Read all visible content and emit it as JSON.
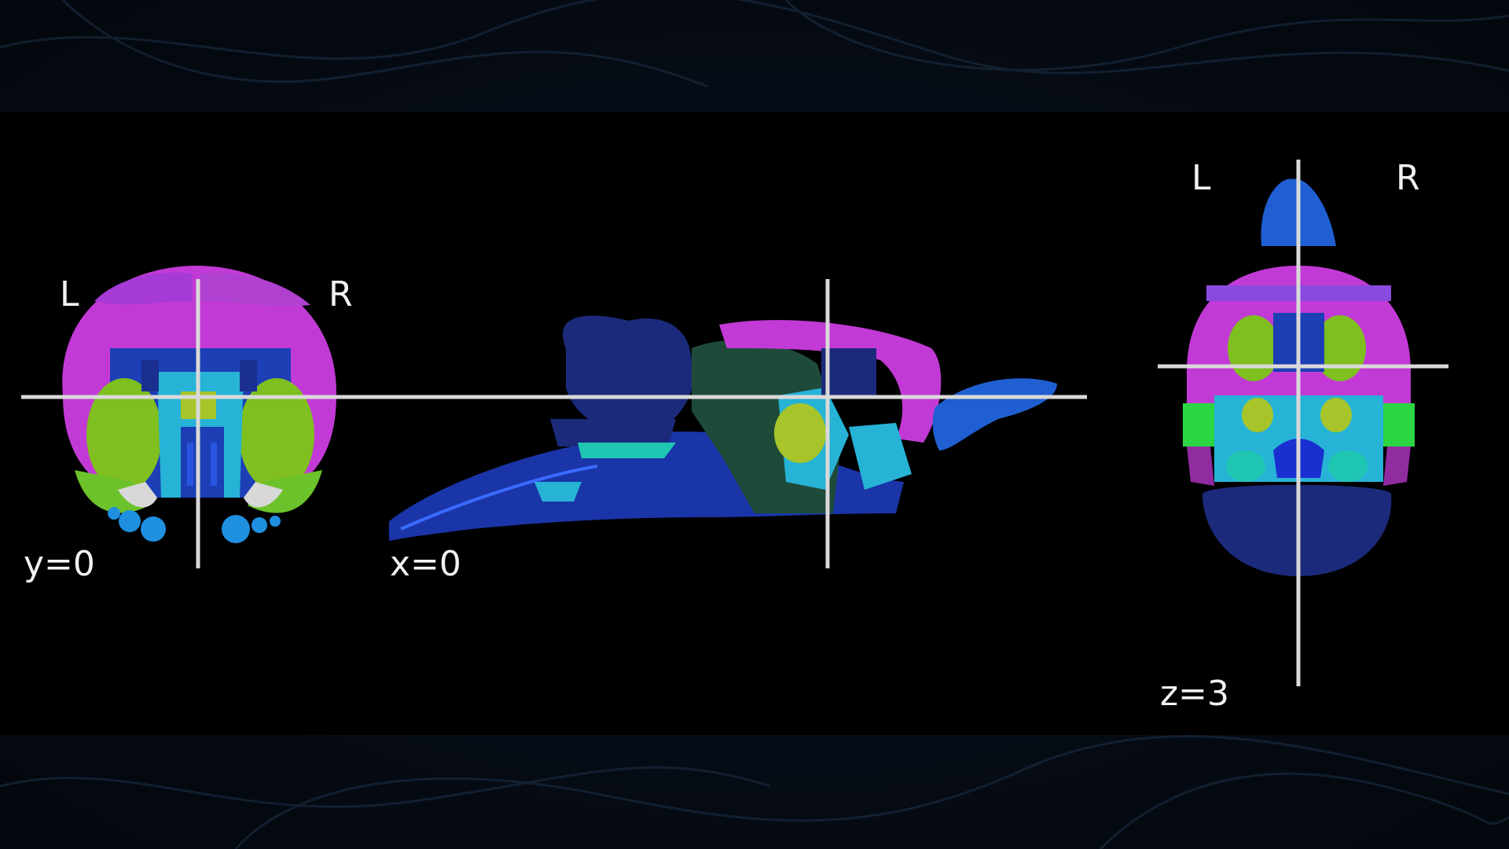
{
  "views": {
    "coronal": {
      "left_label": "L",
      "right_label": "R",
      "coord_label": "y=0"
    },
    "sagittal": {
      "coord_label": "x=0"
    },
    "axial": {
      "left_label": "L",
      "right_label": "R",
      "coord_label": "z=3"
    }
  },
  "colors": {
    "background": "#000000",
    "crosshair": "#d9d9d9",
    "label_text": "#f2f2f2",
    "cortex_magenta": "#c23ad6",
    "striatum_green": "#7fbf1f",
    "ventricle_blue": "#1c3fb5",
    "cerebellum_navy": "#1b2a7a",
    "cyan_regions": "#27b3d6",
    "bright_green": "#2bd642",
    "teal": "#1fc7b3",
    "olfactory_blue": "#1f5fd1"
  }
}
